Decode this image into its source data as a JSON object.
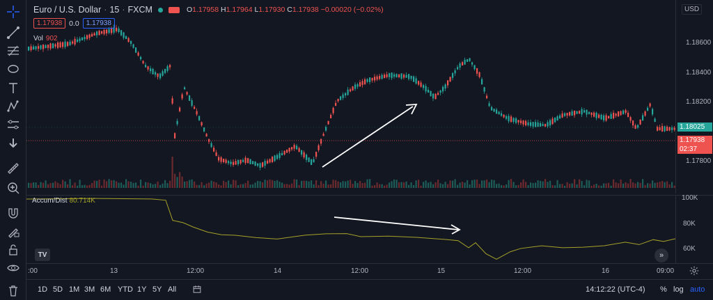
{
  "legend": {
    "symbol": "Euro / U.S. Dollar",
    "interval": "15",
    "exchange": "FXCM",
    "o_label": "O",
    "o_value": "1.17958",
    "h_label": "H",
    "h_value": "1.17964",
    "l_label": "L",
    "l_value": "1.17930",
    "c_label": "C",
    "c_value": "1.17938",
    "change": "−0.00020 (−0.02%)",
    "bid": "1.17938",
    "spread": "0.0",
    "ask": "1.17938"
  },
  "volume_legend": {
    "label": "Vol",
    "value": "902"
  },
  "indicator_legend": {
    "label": "Accum/Dist",
    "value": "80.714K"
  },
  "price_axis": {
    "currency": "USD",
    "ticks": [
      "1.18600",
      "1.18400",
      "1.18200",
      "1.17800"
    ],
    "last_price": "1.18025",
    "current_price": "1.17938",
    "countdown": "02:37",
    "colors": {
      "last": "#26a69a",
      "current": "#ef5350"
    }
  },
  "indicator_axis": {
    "ticks": [
      "100K",
      "80K",
      "60K"
    ]
  },
  "time_axis": {
    "labels": [
      ":00",
      "13",
      "12:00",
      "14",
      "12:00",
      "15",
      "12:00",
      "16",
      "09:00"
    ]
  },
  "timeframes": [
    "1D",
    "5D",
    "1M",
    "3M",
    "6M",
    "YTD",
    "1Y",
    "5Y",
    "All"
  ],
  "bottom": {
    "clock": "14:12:22 (UTC-4)",
    "percent": "%",
    "log": "log",
    "auto": "auto"
  },
  "icons": {
    "crosshair": "crosshair-icon",
    "trendline": "trendline-icon",
    "fib": "fib-icon",
    "shapes": "shapes-icon",
    "text": "text-icon",
    "pattern": "pattern-icon",
    "prediction": "prediction-icon",
    "collapse": "arrow-down-icon",
    "ruler": "ruler-icon",
    "zoom": "zoom-in-icon",
    "magnet": "magnet-icon",
    "lock_draw": "lock-draw-icon",
    "lock": "lock-icon",
    "eye": "eye-icon",
    "trash": "trash-icon",
    "compare": "compare-icon",
    "settings": "gear-icon",
    "logo": "tradingview-logo",
    "scroll": "scroll-right-icon"
  },
  "logo_text": "TV"
}
